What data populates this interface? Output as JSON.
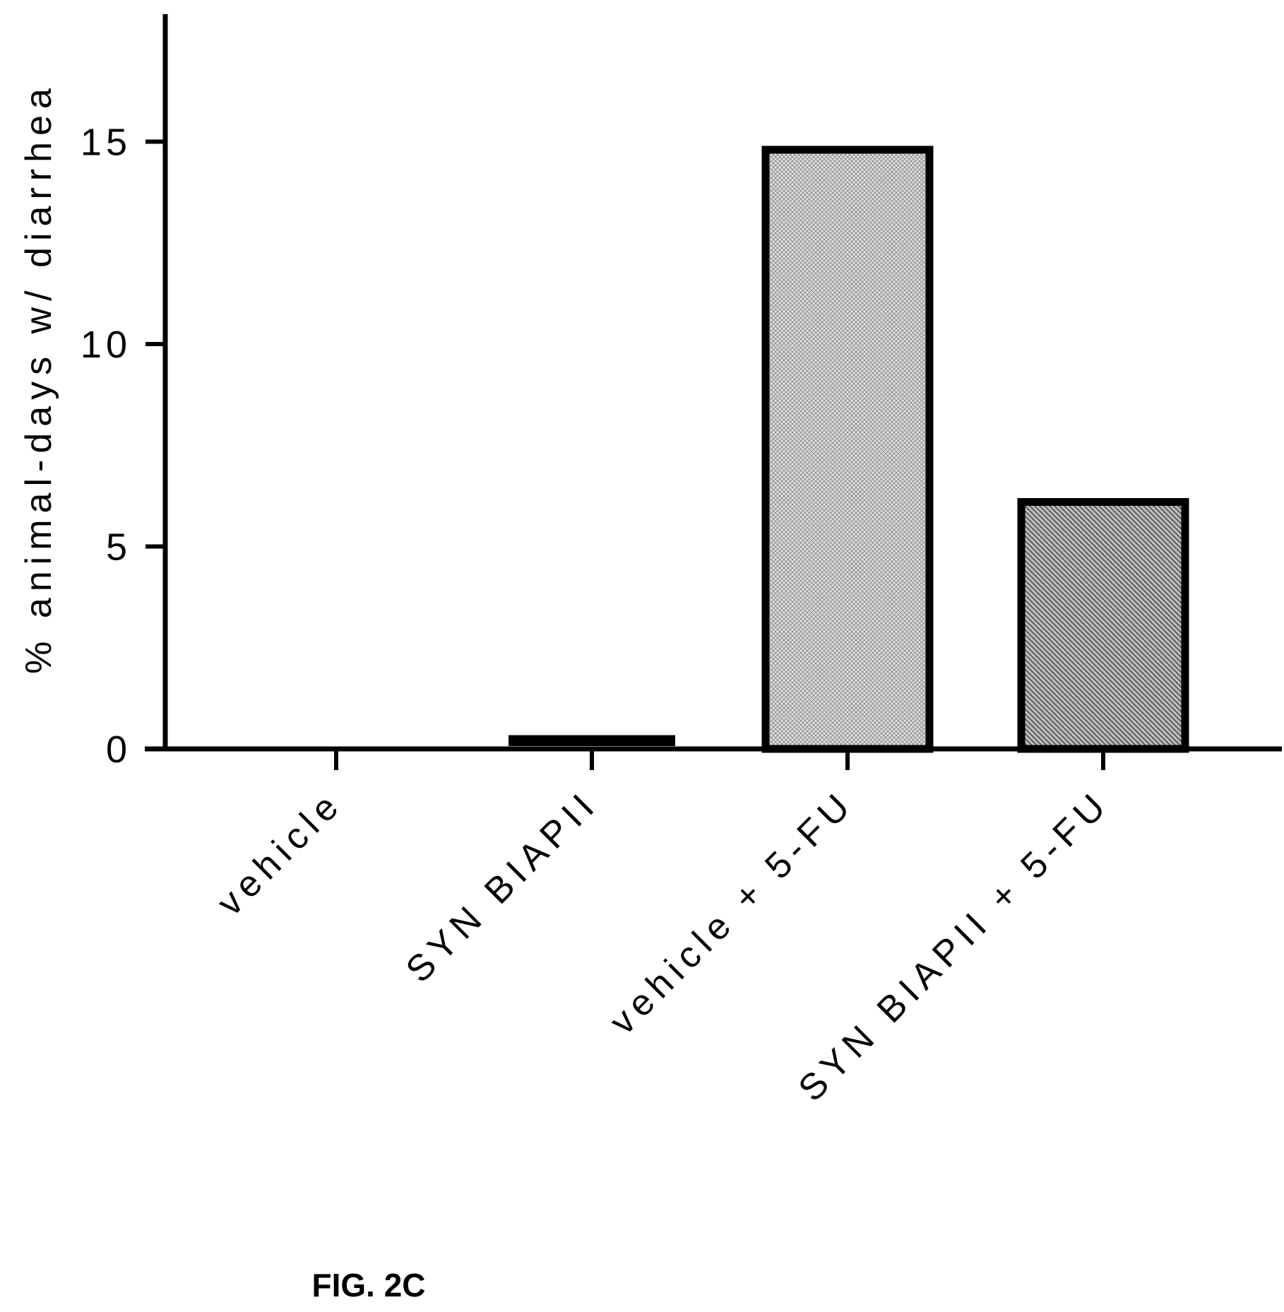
{
  "chart_data": {
    "type": "bar",
    "categories": [
      "vehicle",
      "SYN BIAPII",
      "vehicle + 5-FU",
      "SYN BIAPII + 5-FU"
    ],
    "values": [
      0,
      0.2,
      14.8,
      6.1
    ],
    "ylabel": "% animal-days w/ diarrhea",
    "xlabel": "",
    "ylim": [
      0,
      18
    ],
    "yticks": [
      0,
      5,
      10,
      15
    ],
    "ytick_labels": [
      "0",
      "5",
      "10",
      "15"
    ],
    "bar_fills": [
      "none",
      "solid-black",
      "light-crosshatch",
      "diagonal-hatch"
    ],
    "grid": false,
    "legend": "none"
  },
  "caption": "FIG. 2C",
  "colors": {
    "axis": "#000000",
    "bar_edge": "#000000",
    "light_fill": "#d6d6d6",
    "dark_fill": "#9a9a9a"
  }
}
